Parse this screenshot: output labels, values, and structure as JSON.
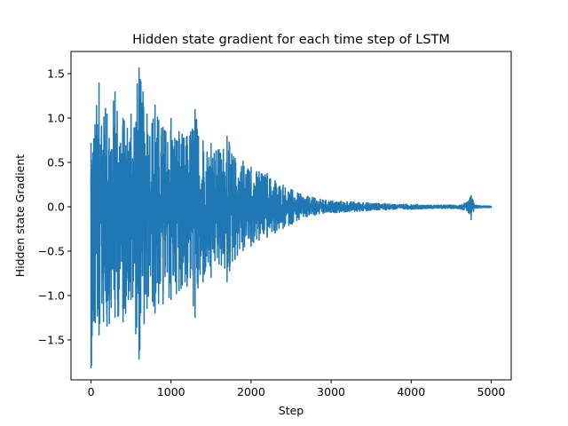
{
  "chart_data": {
    "type": "line",
    "title": "Hidden state gradient for each time step of LSTM",
    "xlabel": "Step",
    "ylabel": "Hidden state Gradient",
    "xlim": [
      -250,
      5250
    ],
    "ylim": [
      -1.95,
      1.75
    ],
    "xticks": [
      0,
      1000,
      2000,
      3000,
      4000,
      5000
    ],
    "yticks": [
      -1.5,
      -1.0,
      -0.5,
      0.0,
      0.5,
      1.0,
      1.5
    ],
    "ytick_labels": [
      "−1.5",
      "−1.0",
      "−0.5",
      "0.0",
      "0.5",
      "1.0",
      "1.5"
    ],
    "grid": false,
    "series": [
      {
        "name": "hidden state gradient",
        "color": "#1f77b4",
        "x": [
          0,
          100,
          200,
          300,
          400,
          500,
          600,
          700,
          800,
          900,
          1000,
          1100,
          1200,
          1300,
          1400,
          1500,
          1600,
          1700,
          1800,
          1900,
          2000,
          2100,
          2200,
          2300,
          2400,
          2500,
          2600,
          2700,
          2800,
          2900,
          3000,
          3200,
          3400,
          3600,
          3800,
          4000,
          4200,
          4400,
          4600,
          4700,
          4750,
          4800,
          4900,
          5000
        ],
        "upper": [
          0.72,
          1.4,
          1.05,
          1.3,
          1.0,
          1.05,
          1.57,
          1.05,
          1.15,
          0.9,
          1.0,
          0.85,
          0.8,
          1.1,
          0.75,
          0.72,
          0.65,
          0.8,
          0.55,
          0.52,
          0.45,
          0.4,
          0.38,
          0.3,
          0.25,
          0.2,
          0.15,
          0.12,
          0.1,
          0.08,
          0.07,
          0.06,
          0.05,
          0.04,
          0.03,
          0.03,
          0.02,
          0.02,
          0.02,
          0.05,
          0.13,
          0.02,
          0.01,
          0.01
        ],
        "lower": [
          -1.82,
          -1.45,
          -1.35,
          -1.25,
          -1.3,
          -1.05,
          -1.72,
          -1.15,
          -1.2,
          -1.1,
          -1.05,
          -0.95,
          -0.9,
          -1.25,
          -0.85,
          -0.8,
          -0.65,
          -0.85,
          -0.6,
          -0.5,
          -0.45,
          -0.38,
          -0.35,
          -0.3,
          -0.25,
          -0.2,
          -0.15,
          -0.12,
          -0.1,
          -0.08,
          -0.07,
          -0.06,
          -0.05,
          -0.04,
          -0.03,
          -0.03,
          -0.02,
          -0.02,
          -0.02,
          -0.05,
          -0.15,
          -0.02,
          -0.01,
          -0.01
        ]
      }
    ]
  }
}
